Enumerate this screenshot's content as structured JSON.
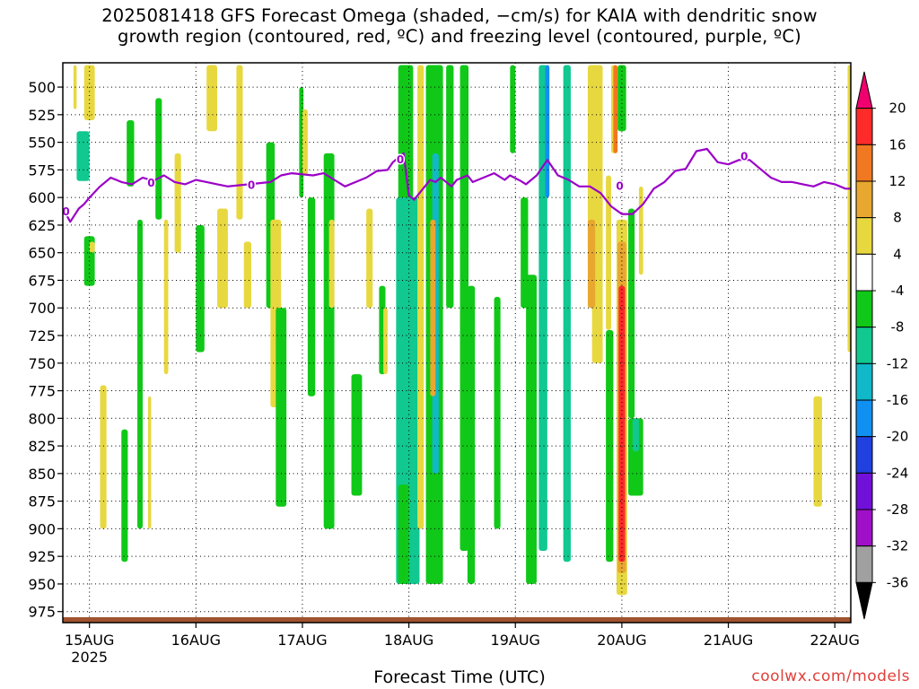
{
  "title": {
    "line1": "2025081418 GFS Forecast Omega (shaded, −cm/s) for KAIA with dendritic snow",
    "line2": "growth region (contoured, red, ºC) and freezing level (contoured, purple, ºC)"
  },
  "credit": "coolwx.com/models",
  "colors": {
    "freezing_level": "#9b00c8",
    "ground": "#a0522d"
  },
  "chart_data": {
    "type": "heatmap",
    "xlabel": "Forecast Time (UTC)",
    "ylabel": "",
    "x_ticks": [
      "15AUG",
      "16AUG",
      "17AUG",
      "18AUG",
      "19AUG",
      "20AUG",
      "21AUG",
      "22AUG"
    ],
    "x_year_label": "2025",
    "x_range_days_from_15AUG00Z": [
      -0.25,
      7.15
    ],
    "y_ticks": [
      500,
      525,
      550,
      575,
      600,
      625,
      650,
      675,
      700,
      725,
      750,
      775,
      800,
      825,
      850,
      875,
      900,
      925,
      950,
      975
    ],
    "y_range_hpa": [
      478,
      985
    ],
    "y_axis_inverted": true,
    "grid": "dotted",
    "colorbar": {
      "levels": [
        20,
        16,
        12,
        8,
        4,
        -4,
        -8,
        -12,
        -16,
        -20,
        -24,
        -28,
        -32,
        -36
      ],
      "colors": [
        "#f0006e",
        "#ff2a2a",
        "#f07820",
        "#e8a830",
        "#e8d840",
        "#ffffff",
        "#10c818",
        "#10c890",
        "#10b8c8",
        "#1090f0",
        "#2040e0",
        "#7010d8",
        "#a010c8",
        "#a0a0a0",
        "#000000"
      ]
    },
    "omega_regions": [
      {
        "x0": -0.15,
        "x1": -0.12,
        "p0": 480,
        "p1": 520,
        "value": 6
      },
      {
        "x0": -0.05,
        "x1": 0.05,
        "p0": 480,
        "p1": 530,
        "value": 6
      },
      {
        "x0": -0.12,
        "x1": 0.0,
        "p0": 540,
        "p1": 585,
        "value": -10
      },
      {
        "x0": -0.05,
        "x1": 0.05,
        "p0": 635,
        "p1": 680,
        "value": -6
      },
      {
        "x0": 0.0,
        "x1": 0.05,
        "p0": 640,
        "p1": 650,
        "value": 5
      },
      {
        "x0": 0.1,
        "x1": 0.16,
        "p0": 770,
        "p1": 900,
        "value": 5
      },
      {
        "x0": 0.3,
        "x1": 0.36,
        "p0": 810,
        "p1": 930,
        "value": -6
      },
      {
        "x0": 0.35,
        "x1": 0.42,
        "p0": 530,
        "p1": 590,
        "value": -6
      },
      {
        "x0": 0.45,
        "x1": 0.5,
        "p0": 620,
        "p1": 900,
        "value": -6
      },
      {
        "x0": 0.55,
        "x1": 0.58,
        "p0": 780,
        "p1": 900,
        "value": 5
      },
      {
        "x0": 0.62,
        "x1": 0.68,
        "p0": 510,
        "p1": 620,
        "value": -6
      },
      {
        "x0": 0.7,
        "x1": 0.74,
        "p0": 620,
        "p1": 760,
        "value": 5
      },
      {
        "x0": 0.8,
        "x1": 0.86,
        "p0": 560,
        "p1": 650,
        "value": 5
      },
      {
        "x0": 1.0,
        "x1": 1.08,
        "p0": 625,
        "p1": 740,
        "value": -6
      },
      {
        "x0": 1.1,
        "x1": 1.2,
        "p0": 480,
        "p1": 540,
        "value": 5
      },
      {
        "x0": 1.2,
        "x1": 1.3,
        "p0": 610,
        "p1": 700,
        "value": 5
      },
      {
        "x0": 1.38,
        "x1": 1.44,
        "p0": 480,
        "p1": 620,
        "value": 5
      },
      {
        "x0": 1.45,
        "x1": 1.52,
        "p0": 640,
        "p1": 700,
        "value": 5
      },
      {
        "x0": 1.66,
        "x1": 1.74,
        "p0": 550,
        "p1": 700,
        "value": -6
      },
      {
        "x0": 1.7,
        "x1": 1.8,
        "p0": 620,
        "p1": 790,
        "value": 5
      },
      {
        "x0": 1.75,
        "x1": 1.85,
        "p0": 700,
        "p1": 880,
        "value": -6
      },
      {
        "x0": 1.97,
        "x1": 2.01,
        "p0": 500,
        "p1": 600,
        "value": -6
      },
      {
        "x0": 2.0,
        "x1": 2.05,
        "p0": 520,
        "p1": 580,
        "value": 5
      },
      {
        "x0": 2.05,
        "x1": 2.12,
        "p0": 600,
        "p1": 780,
        "value": -6
      },
      {
        "x0": 2.2,
        "x1": 2.3,
        "p0": 560,
        "p1": 900,
        "value": -6
      },
      {
        "x0": 2.25,
        "x1": 2.3,
        "p0": 620,
        "p1": 700,
        "value": 5
      },
      {
        "x0": 2.46,
        "x1": 2.56,
        "p0": 760,
        "p1": 870,
        "value": -6
      },
      {
        "x0": 2.6,
        "x1": 2.66,
        "p0": 610,
        "p1": 700,
        "value": 5
      },
      {
        "x0": 2.72,
        "x1": 2.78,
        "p0": 680,
        "p1": 760,
        "value": -6
      },
      {
        "x0": 2.76,
        "x1": 2.8,
        "p0": 700,
        "p1": 760,
        "value": 5
      },
      {
        "x0": 2.9,
        "x1": 3.04,
        "p0": 480,
        "p1": 620,
        "value": -8
      },
      {
        "x0": 2.88,
        "x1": 3.1,
        "p0": 600,
        "p1": 950,
        "value": -9
      },
      {
        "x0": 2.9,
        "x1": 3.0,
        "p0": 860,
        "p1": 950,
        "value": -6
      },
      {
        "x0": 3.08,
        "x1": 3.14,
        "p0": 480,
        "p1": 900,
        "value": 5
      },
      {
        "x0": 3.16,
        "x1": 3.32,
        "p0": 480,
        "p1": 950,
        "value": -8
      },
      {
        "x0": 3.22,
        "x1": 3.28,
        "p0": 560,
        "p1": 850,
        "value": -14
      },
      {
        "x0": 3.2,
        "x1": 3.25,
        "p0": 620,
        "p1": 780,
        "value": 10
      },
      {
        "x0": 3.35,
        "x1": 3.42,
        "p0": 480,
        "p1": 700,
        "value": -6
      },
      {
        "x0": 3.48,
        "x1": 3.56,
        "p0": 480,
        "p1": 920,
        "value": -6
      },
      {
        "x0": 3.55,
        "x1": 3.62,
        "p0": 680,
        "p1": 950,
        "value": -8
      },
      {
        "x0": 3.8,
        "x1": 3.86,
        "p0": 690,
        "p1": 900,
        "value": -6
      },
      {
        "x0": 3.95,
        "x1": 4.0,
        "p0": 480,
        "p1": 560,
        "value": -8
      },
      {
        "x0": 4.05,
        "x1": 4.12,
        "p0": 600,
        "p1": 700,
        "value": -6
      },
      {
        "x0": 4.1,
        "x1": 4.2,
        "p0": 670,
        "p1": 950,
        "value": -6
      },
      {
        "x0": 4.22,
        "x1": 4.3,
        "p0": 480,
        "p1": 920,
        "value": -9
      },
      {
        "x0": 4.28,
        "x1": 4.32,
        "p0": 480,
        "p1": 600,
        "value": -18
      },
      {
        "x0": 4.45,
        "x1": 4.52,
        "p0": 480,
        "p1": 930,
        "value": -9
      },
      {
        "x0": 4.68,
        "x1": 4.82,
        "p0": 480,
        "p1": 660,
        "value": 5
      },
      {
        "x0": 4.72,
        "x1": 4.82,
        "p0": 600,
        "p1": 750,
        "value": 6
      },
      {
        "x0": 4.68,
        "x1": 4.75,
        "p0": 620,
        "p1": 700,
        "value": 10
      },
      {
        "x0": 4.85,
        "x1": 4.9,
        "p0": 580,
        "p1": 720,
        "value": 5
      },
      {
        "x0": 4.9,
        "x1": 4.95,
        "p0": 480,
        "p1": 560,
        "value": 6
      },
      {
        "x0": 4.92,
        "x1": 4.96,
        "p0": 480,
        "p1": 560,
        "value": 12
      },
      {
        "x0": 4.96,
        "x1": 5.04,
        "p0": 480,
        "p1": 540,
        "value": -6
      },
      {
        "x0": 4.85,
        "x1": 4.92,
        "p0": 720,
        "p1": 930,
        "value": -6
      },
      {
        "x0": 4.95,
        "x1": 5.05,
        "p0": 620,
        "p1": 960,
        "value": 6
      },
      {
        "x0": 4.96,
        "x1": 5.04,
        "p0": 640,
        "p1": 940,
        "value": 10
      },
      {
        "x0": 4.97,
        "x1": 5.03,
        "p0": 680,
        "p1": 930,
        "value": 18
      },
      {
        "x0": 5.06,
        "x1": 5.12,
        "p0": 610,
        "p1": 800,
        "value": -6
      },
      {
        "x0": 5.06,
        "x1": 5.2,
        "p0": 800,
        "p1": 870,
        "value": -6
      },
      {
        "x0": 5.1,
        "x1": 5.16,
        "p0": 800,
        "p1": 830,
        "value": -10
      },
      {
        "x0": 5.16,
        "x1": 5.2,
        "p0": 590,
        "p1": 670,
        "value": 5
      },
      {
        "x0": 6.8,
        "x1": 6.88,
        "p0": 780,
        "p1": 880,
        "value": 5
      },
      {
        "x0": 7.12,
        "x1": 7.15,
        "p0": 480,
        "p1": 740,
        "value": 5
      }
    ],
    "freezing_level_series": {
      "name": "",
      "label": "0",
      "x_days": [
        -0.25,
        -0.18,
        -0.1,
        -0.05,
        0.0,
        0.1,
        0.2,
        0.3,
        0.4,
        0.5,
        0.6,
        0.7,
        0.8,
        0.9,
        1.0,
        1.1,
        1.2,
        1.3,
        1.5,
        1.7,
        1.8,
        1.9,
        2.1,
        2.2,
        2.3,
        2.4,
        2.5,
        2.6,
        2.7,
        2.8,
        2.85,
        2.95,
        3.0,
        3.05,
        3.15,
        3.2,
        3.25,
        3.3,
        3.4,
        3.45,
        3.55,
        3.6,
        3.7,
        3.8,
        3.9,
        3.95,
        4.05,
        4.1,
        4.2,
        4.3,
        4.4,
        4.5,
        4.6,
        4.7,
        4.8,
        4.9,
        5.0,
        5.1,
        5.2,
        5.3,
        5.4,
        5.5,
        5.6,
        5.7,
        5.8,
        5.9,
        6.0,
        6.1,
        6.2,
        6.3,
        6.4,
        6.5,
        6.6,
        6.7,
        6.8,
        6.9,
        7.0,
        7.1,
        7.15
      ],
      "y_hpa": [
        610,
        622,
        610,
        606,
        600,
        590,
        582,
        586,
        588,
        582,
        585,
        580,
        586,
        588,
        584,
        586,
        588,
        590,
        588,
        586,
        580,
        578,
        580,
        578,
        584,
        590,
        586,
        582,
        576,
        575,
        568,
        560,
        598,
        602,
        590,
        584,
        586,
        582,
        590,
        584,
        580,
        586,
        582,
        578,
        584,
        580,
        585,
        588,
        580,
        566,
        580,
        584,
        590,
        590,
        596,
        608,
        615,
        615,
        606,
        592,
        586,
        576,
        574,
        558,
        556,
        568,
        570,
        566,
        566,
        574,
        582,
        586,
        586,
        588,
        590,
        586,
        588,
        592,
        592
      ],
      "label_points": [
        {
          "x_days": -0.22,
          "y_hpa": 612
        },
        {
          "x_days": 0.58,
          "y_hpa": 586
        },
        {
          "x_days": 1.52,
          "y_hpa": 588
        },
        {
          "x_days": 2.92,
          "y_hpa": 565
        },
        {
          "x_days": 4.98,
          "y_hpa": 589
        },
        {
          "x_days": 6.15,
          "y_hpa": 562
        }
      ]
    }
  }
}
